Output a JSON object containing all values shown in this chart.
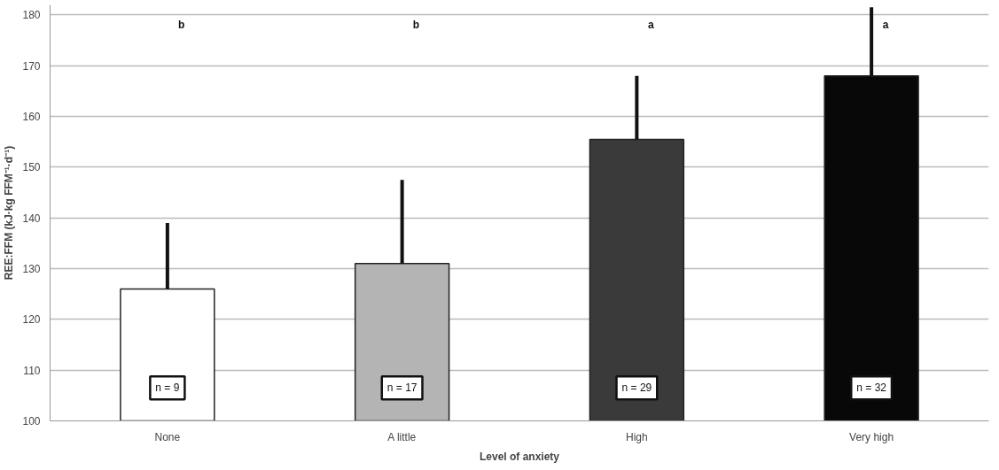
{
  "chart_data": {
    "type": "bar",
    "categories": [
      "None",
      "A little",
      "High",
      "Very high"
    ],
    "values": [
      126,
      131,
      155.5,
      168
    ],
    "colors": [
      "#ffffff",
      "#b4b4b4",
      "#3a3a3a",
      "#080808"
    ],
    "errors": [
      [
        126,
        139
      ],
      [
        131,
        147.5
      ],
      [
        155.5,
        168
      ],
      [
        168,
        181.5
      ]
    ],
    "xlabel": "Level of anxiety",
    "ylabel": "REE:FFM (kJ·kg FFM⁻¹·d⁻¹)",
    "ylim": [
      100,
      182
    ],
    "yticks": [
      100,
      110,
      120,
      130,
      140,
      150,
      160,
      170,
      180
    ],
    "grid": "y",
    "annotations": [
      "b",
      "b",
      "a",
      "a",
      "n = 9",
      "n = 17",
      "n = 29",
      "n = 32"
    ]
  }
}
